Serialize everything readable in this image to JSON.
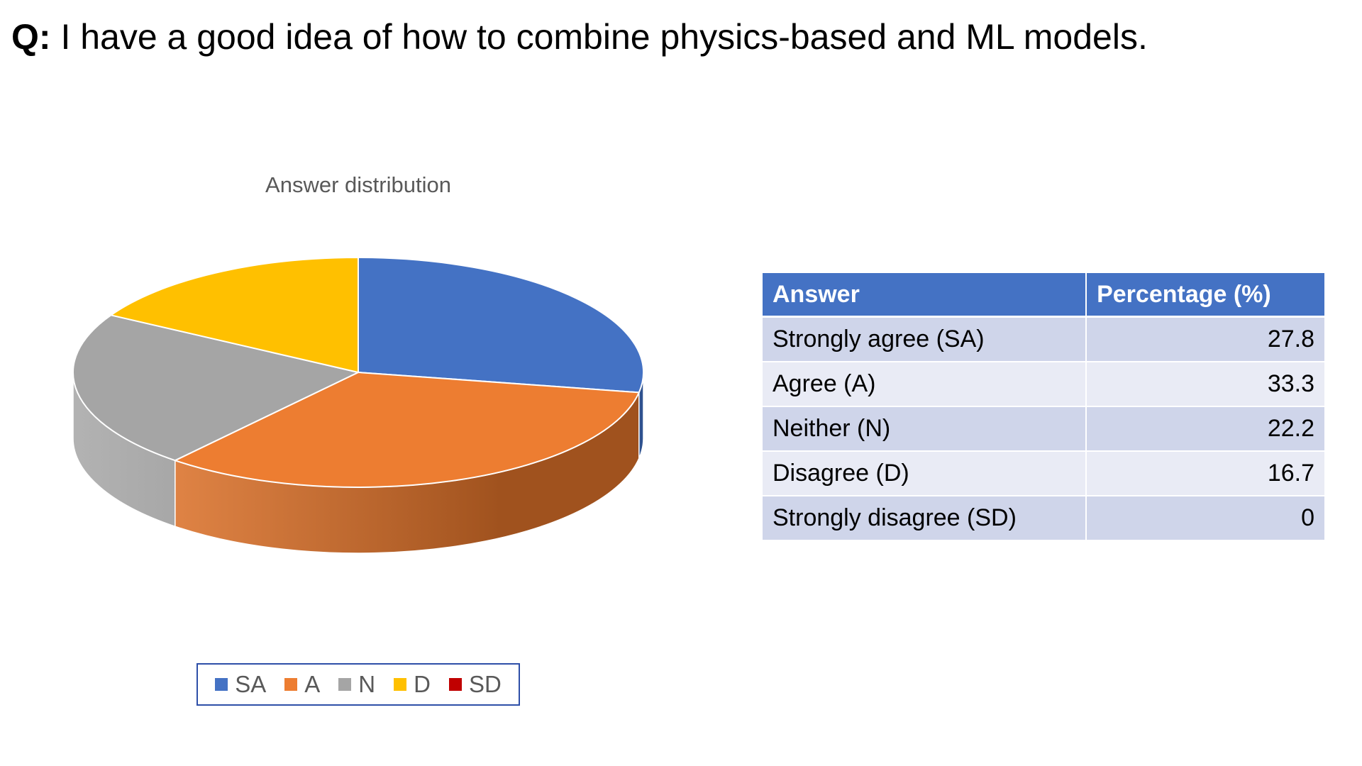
{
  "question": {
    "label": "Q:",
    "text": "I have a good idea of how to combine physics-based and ML models."
  },
  "chart_data": {
    "type": "pie",
    "title": "Answer distribution",
    "style": "3d",
    "categories": [
      "SA",
      "A",
      "N",
      "D",
      "SD"
    ],
    "values": [
      27.8,
      33.3,
      22.2,
      16.7,
      0
    ],
    "colors": [
      "#4472c4",
      "#ed7d31",
      "#a5a5a5",
      "#ffc000",
      "#c00000"
    ],
    "side_colors": [
      "#2f528f",
      "#a0521e",
      "#7f7f7f",
      "#bf9000",
      "#900000"
    ],
    "legend_position": "bottom"
  },
  "table": {
    "headers": [
      "Answer",
      "Percentage (%)"
    ],
    "rows": [
      [
        "Strongly agree (SA)",
        "27.8"
      ],
      [
        "Agree (A)",
        "33.3"
      ],
      [
        "Neither (N)",
        "22.2"
      ],
      [
        "Disagree (D)",
        "16.7"
      ],
      [
        "Strongly disagree (SD)",
        "0"
      ]
    ]
  }
}
